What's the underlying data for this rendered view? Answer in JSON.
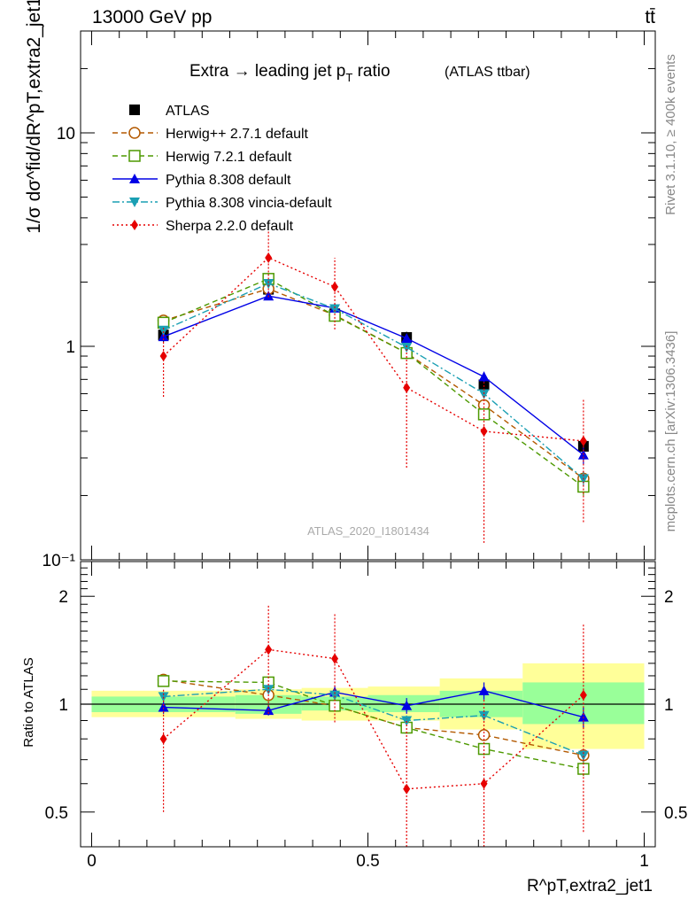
{
  "header": {
    "energy": "13000 GeV pp",
    "process": "tt̄"
  },
  "side_labels": {
    "rivet": "Rivet 3.1.10, ≥ 400k events",
    "mcplots": "mcplots.cern.ch [arXiv:1306.3436]"
  },
  "plot_title": {
    "main": "Extra → leading jet p",
    "sub": "T",
    "rest": " ratio",
    "paren": "(ATLAS ttbar)"
  },
  "watermark": "ATLAS_2020_I1801434",
  "colors": {
    "ATLAS": "#000000",
    "herwigpp": "#b35900",
    "herwig7": "#4d9900",
    "pythia": "#0000e6",
    "vincia": "#1a9fb3",
    "sherpa": "#e60000",
    "band_yellow": "#ffff99",
    "band_green": "#99ff99"
  },
  "chart_data": [
    {
      "type": "line",
      "panel": "main",
      "title": "Extra → leading jet pT ratio (ATLAS ttbar)",
      "ylabel": "1/σ dσ^fid/dR^pT,extra2_jet1",
      "yscale": "log",
      "ylim": [
        0.1,
        30
      ],
      "xlim": [
        -0.02,
        1.02
      ],
      "yticks": [
        {
          "v": 0.1,
          "label": "10⁻¹"
        },
        {
          "v": 1,
          "label": "1"
        },
        {
          "v": 10,
          "label": "10"
        }
      ],
      "legend_position": "top-left",
      "x": [
        0.13,
        0.32,
        0.44,
        0.57,
        0.71,
        0.89
      ],
      "series": [
        {
          "name": "ATLAS",
          "key": "ATLAS",
          "marker": "square-filled",
          "line": "none",
          "values": [
            1.13,
            1.85,
            1.42,
            1.1,
            0.66,
            0.34
          ],
          "err": [
            0.08,
            0.12,
            0.1,
            0.07,
            0.05,
            0.03
          ]
        },
        {
          "name": "Herwig++ 2.7.1 default",
          "key": "herwigpp",
          "marker": "circle-open",
          "line": "dashed",
          "values": [
            1.32,
            1.86,
            1.4,
            0.93,
            0.53,
            0.24
          ],
          "err": [
            0.04,
            0.06,
            0.05,
            0.04,
            0.03,
            0.02
          ]
        },
        {
          "name": "Herwig 7.2.1 default",
          "key": "herwig7",
          "marker": "square-open",
          "line": "dashed",
          "values": [
            1.29,
            2.07,
            1.39,
            0.93,
            0.48,
            0.22
          ],
          "err": [
            0.04,
            0.06,
            0.05,
            0.04,
            0.03,
            0.02
          ]
        },
        {
          "name": "Pythia 8.308 default",
          "key": "pythia",
          "marker": "triangle-up",
          "line": "solid",
          "values": [
            1.11,
            1.72,
            1.51,
            1.09,
            0.72,
            0.31
          ],
          "err": [
            0.04,
            0.06,
            0.05,
            0.05,
            0.04,
            0.03
          ]
        },
        {
          "name": "Pythia 8.308 vincia-default",
          "key": "vincia",
          "marker": "triangle-down",
          "line": "dashdot",
          "values": [
            1.19,
            1.97,
            1.5,
            0.99,
            0.6,
            0.24
          ],
          "err": [
            0.04,
            0.06,
            0.05,
            0.04,
            0.03,
            0.02
          ]
        },
        {
          "name": "Sherpa 2.2.0 default",
          "key": "sherpa",
          "marker": "diamond",
          "line": "dotted",
          "values": [
            0.9,
            2.6,
            1.9,
            0.64,
            0.4,
            0.36
          ],
          "err": [
            0.32,
            0.9,
            0.7,
            0.37,
            0.28,
            0.21
          ]
        }
      ]
    },
    {
      "type": "line",
      "panel": "ratio",
      "ylabel": "Ratio to ATLAS",
      "xlabel": "R^pT,extra2_jet1",
      "ylim": [
        0.4,
        2.5
      ],
      "xlim": [
        -0.02,
        1.02
      ],
      "yticks": [
        0.5,
        1,
        2
      ],
      "xticks": [
        {
          "v": 0,
          "label": "0"
        },
        {
          "v": 0.5,
          "label": "0.5"
        },
        {
          "v": 1,
          "label": "1"
        }
      ],
      "bands": [
        {
          "x0": 0.0,
          "x1": 0.26,
          "green": [
            0.95,
            1.05
          ],
          "yellow": [
            0.92,
            1.09
          ]
        },
        {
          "x0": 0.26,
          "x1": 0.38,
          "green": [
            0.94,
            1.06
          ],
          "yellow": [
            0.91,
            1.1
          ]
        },
        {
          "x0": 0.38,
          "x1": 0.5,
          "green": [
            0.96,
            1.05
          ],
          "yellow": [
            0.9,
            1.11
          ]
        },
        {
          "x0": 0.5,
          "x1": 0.63,
          "green": [
            0.95,
            1.06
          ],
          "yellow": [
            0.9,
            1.12
          ]
        },
        {
          "x0": 0.63,
          "x1": 0.78,
          "green": [
            0.92,
            1.09
          ],
          "yellow": [
            0.85,
            1.18
          ]
        },
        {
          "x0": 0.78,
          "x1": 1.0,
          "green": [
            0.88,
            1.15
          ],
          "yellow": [
            0.75,
            1.3
          ]
        }
      ],
      "x": [
        0.13,
        0.32,
        0.44,
        0.57,
        0.71,
        0.89
      ],
      "series": [
        {
          "name": "Herwig++ 2.7.1 default",
          "key": "herwigpp",
          "values": [
            1.17,
            1.06,
            0.99,
            0.86,
            0.82,
            0.72
          ],
          "err": [
            0.03,
            0.03,
            0.03,
            0.03,
            0.03,
            0.03
          ]
        },
        {
          "name": "Herwig 7.2.1 default",
          "key": "herwig7",
          "values": [
            1.16,
            1.15,
            0.99,
            0.86,
            0.75,
            0.66
          ],
          "err": [
            0.03,
            0.03,
            0.03,
            0.03,
            0.03,
            0.03
          ]
        },
        {
          "name": "Pythia 8.308 default",
          "key": "pythia",
          "values": [
            0.98,
            0.96,
            1.08,
            0.99,
            1.09,
            0.92
          ],
          "err": [
            0.04,
            0.03,
            0.04,
            0.05,
            0.06,
            0.06
          ]
        },
        {
          "name": "Pythia 8.308 vincia-default",
          "key": "vincia",
          "values": [
            1.05,
            1.1,
            1.06,
            0.9,
            0.93,
            0.72
          ],
          "err": [
            0.03,
            0.03,
            0.03,
            0.03,
            0.03,
            0.03
          ]
        },
        {
          "name": "Sherpa 2.2.0 default",
          "key": "sherpa",
          "values": [
            0.8,
            1.42,
            1.34,
            0.58,
            0.6,
            1.06
          ],
          "err": [
            0.3,
            0.48,
            0.45,
            0.33,
            0.43,
            0.62
          ]
        }
      ]
    }
  ]
}
